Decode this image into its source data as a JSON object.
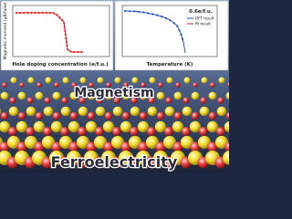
{
  "left_panel": {
    "y_label": "Magnetic moment (μB/hole)",
    "x_label": "Hole doping concentration (e/f.u.)"
  },
  "right_panel": {
    "x_label": "Temperature (K)",
    "annotation": "0.6e/f.u.",
    "legend": [
      "DFT result",
      "fit result"
    ]
  },
  "scene": {
    "top_label": "Magnetism",
    "bottom_label": "Ferroelectricity"
  }
}
